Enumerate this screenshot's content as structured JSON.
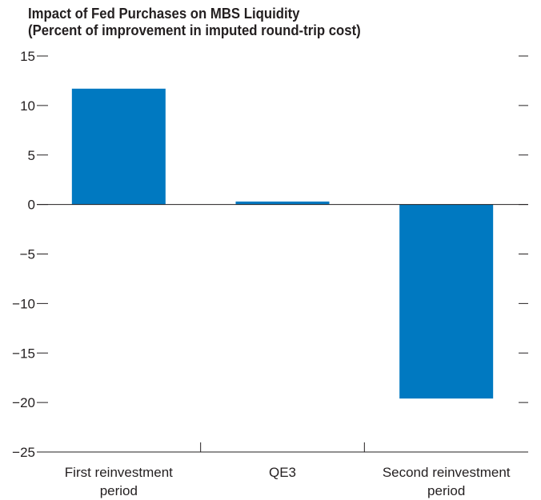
{
  "chart_data": {
    "type": "bar",
    "title": "Impact of Fed Purchases on MBS Liquidity",
    "subtitle": "(Percent of improvement in imputed round-trip cost)",
    "categories": [
      [
        "First reinvestment",
        "period"
      ],
      [
        "QE3"
      ],
      [
        "Second reinvestment",
        "period"
      ]
    ],
    "values": [
      11.7,
      0.3,
      -19.6
    ],
    "ylim": [
      -25,
      15
    ],
    "yticks": [
      15,
      10,
      5,
      0,
      -5,
      -10,
      -15,
      -20,
      -25
    ],
    "ytick_labels": [
      "15",
      "10",
      "5",
      "0",
      "−5",
      "−10",
      "−15",
      "−20",
      "−25"
    ],
    "grid": false,
    "legend": "none",
    "bar_color": "#0079c1",
    "axis_color": "#231f20"
  }
}
